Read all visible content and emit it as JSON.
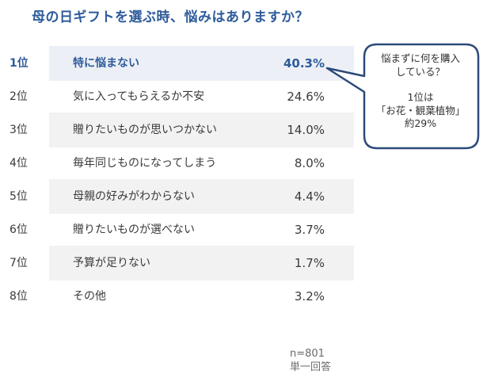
{
  "title": "母の日ギフトを選ぶ時、悩みはありますか？",
  "chart_data": {
    "type": "table",
    "rows": [
      {
        "rank": "1位",
        "label": "特に悩まない",
        "value": "40.3%"
      },
      {
        "rank": "2位",
        "label": "気に入ってもらえるか不安",
        "value": "24.6%"
      },
      {
        "rank": "3位",
        "label": "贈りたいものが思いつかない",
        "value": "14.0%"
      },
      {
        "rank": "4位",
        "label": "毎年同じものになってしまう",
        "value": "8.0%"
      },
      {
        "rank": "5位",
        "label": "母親の好みがわからない",
        "value": "4.4%"
      },
      {
        "rank": "6位",
        "label": "贈りたいものが選べない",
        "value": "3.7%"
      },
      {
        "rank": "7位",
        "label": "予算が足りない",
        "value": "1.7%"
      },
      {
        "rank": "8位",
        "label": "その他",
        "value": "3.2%"
      }
    ],
    "values": [
      40.3,
      24.6,
      14.0,
      8.0,
      4.4,
      3.7,
      1.7,
      3.2
    ]
  },
  "callout": {
    "line1": "悩まずに何を購入",
    "line2": "している？",
    "line3": "1位は",
    "line4": "「お花・観葉植物」",
    "line5": "約29%"
  },
  "note": {
    "sample": "n=801",
    "type": "単一回答"
  },
  "colors": {
    "accent": "#2e5b9a",
    "callout_border": "#2b4a7a",
    "row_shade": "#f2f2f2"
  }
}
